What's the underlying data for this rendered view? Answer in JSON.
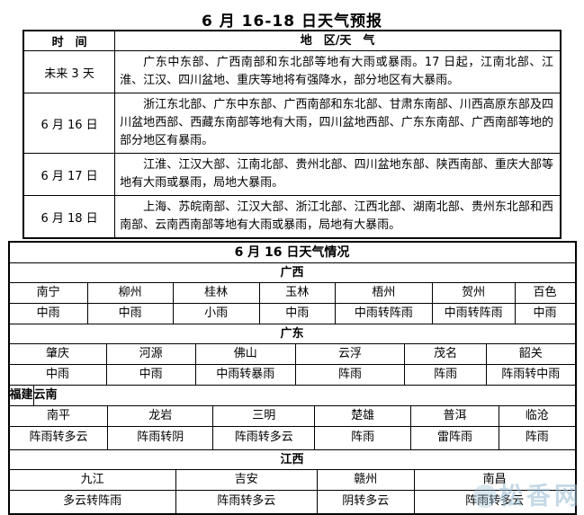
{
  "page": {
    "title": "6 月 16-18 日天气预报",
    "watermark": "松香网"
  },
  "forecast": {
    "col_time": "时　间",
    "col_region": "地　区/天　气",
    "rows": [
      {
        "time": "未来 3 天",
        "desc": "广东中东部、广西南部和东北部等地有大雨或暴雨。17 日起，江南北部、江淮、江汉、四川盆地、重庆等地将有强降水，部分地区有大暴雨。"
      },
      {
        "time": "6 月 16 日",
        "desc": "浙江东北部、广东中东部、广西南部和东北部、甘肃东南部、川西高原东部及四川盆地西部、西藏东南部等地有大雨，四川盆地西部、广东东南部、广西南部等地的部分地区有暴雨。"
      },
      {
        "time": "6 月 17 日",
        "desc": "江淮、江汉大部、江南北部、贵州北部、四川盆地东部、陕西南部、重庆大部等地有大雨或暴雨，局地大暴雨。"
      },
      {
        "time": "6 月 18 日",
        "desc": "上海、苏皖南部、江汉大部、浙江北部、江西北部、湖南北部、贵州东北部和西南部、云南西南部等地有大雨或暴雨，局地有大暴雨。"
      }
    ]
  },
  "conditions": {
    "title": "6 月 16 日天气情况",
    "guangxi": {
      "name": "广西",
      "cities": [
        "南宁",
        "柳州",
        "桂林",
        "玉林",
        "梧州",
        "贺州",
        "百色"
      ],
      "weather": [
        "中雨",
        "中雨",
        "小雨",
        "中雨",
        "中雨转阵雨",
        "中雨转阵雨",
        "中雨"
      ]
    },
    "guangdong": {
      "name": "广东",
      "cities": [
        "肇庆",
        "河源",
        "佛山",
        "云浮",
        "茂名",
        "韶关"
      ],
      "weather": [
        "中雨",
        "中雨",
        "中雨转暴雨",
        "阵雨",
        "阵雨",
        "阵雨转中雨"
      ]
    },
    "fujian": {
      "name": "福建",
      "cities": [
        "南平",
        "龙岩",
        "三明"
      ],
      "weather": [
        "阵雨转多云",
        "阵雨转阴",
        "阵雨转多云"
      ]
    },
    "yunnan": {
      "name": "云南",
      "cities": [
        "楚雄",
        "普洱",
        "临沧"
      ],
      "weather": [
        "阵雨",
        "雷阵雨",
        "阵雨"
      ]
    },
    "jiangxi": {
      "name": "江西",
      "cities": [
        "九江",
        "吉安",
        "赣州",
        "南昌"
      ],
      "weather": [
        "多云转阵雨",
        "阵雨转多云",
        "阴转多云",
        "阵雨转多云"
      ]
    }
  }
}
